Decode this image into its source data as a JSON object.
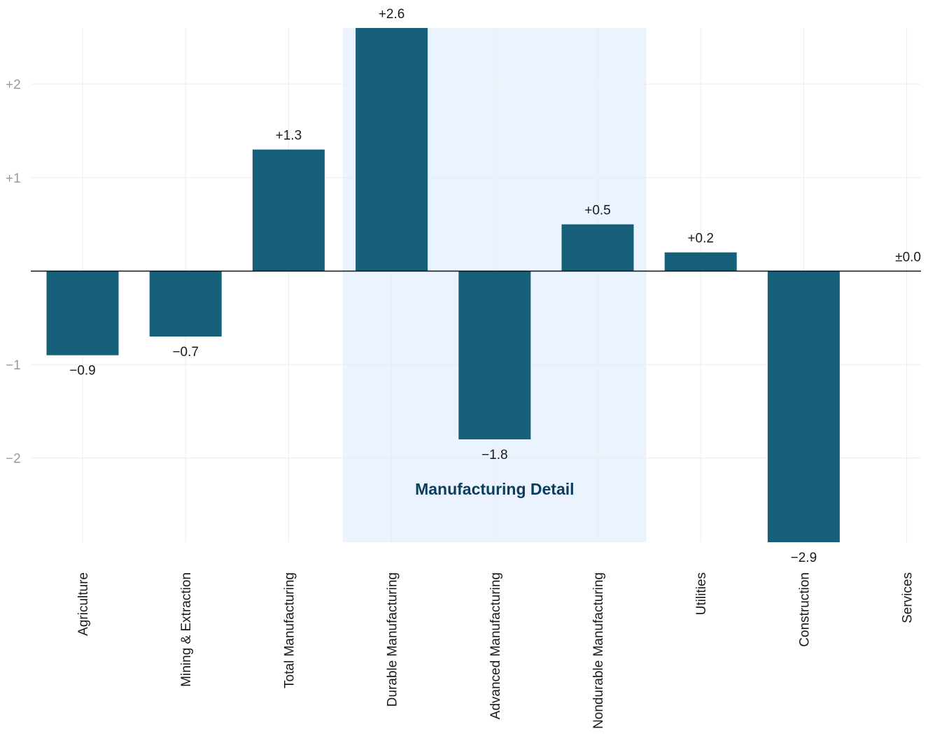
{
  "chart_data": {
    "type": "bar",
    "categories": [
      "Agriculture",
      "Mining & Extraction",
      "Total Manufacturing",
      "Durable Manufacturing",
      "Advanced Manufacturing",
      "Nondurable Manufacturing",
      "Utilities",
      "Construction",
      "Services"
    ],
    "values": [
      -0.9,
      -0.7,
      1.3,
      2.6,
      -1.8,
      0.5,
      0.2,
      -2.9,
      0.0
    ],
    "data_labels": [
      "−0.9",
      "−0.7",
      "+1.3",
      "+2.6",
      "−1.8",
      "+0.5",
      "+0.2",
      "−2.9",
      "±0.0"
    ],
    "ylim": [
      -2.9,
      2.6
    ],
    "yticks": [
      -2,
      -1,
      1,
      2
    ],
    "ytick_labels": [
      "−2",
      "−1",
      "+1",
      "+2"
    ],
    "grid": true,
    "zero_line": true,
    "bar_color": "#17607a",
    "highlight": {
      "label": "Manufacturing Detail",
      "from_category": "Durable Manufacturing",
      "to_category": "Nondurable Manufacturing",
      "color": "#eaf3fe",
      "label_color": "#0b3d5c"
    },
    "xlabel": "",
    "ylabel": "",
    "title": ""
  }
}
